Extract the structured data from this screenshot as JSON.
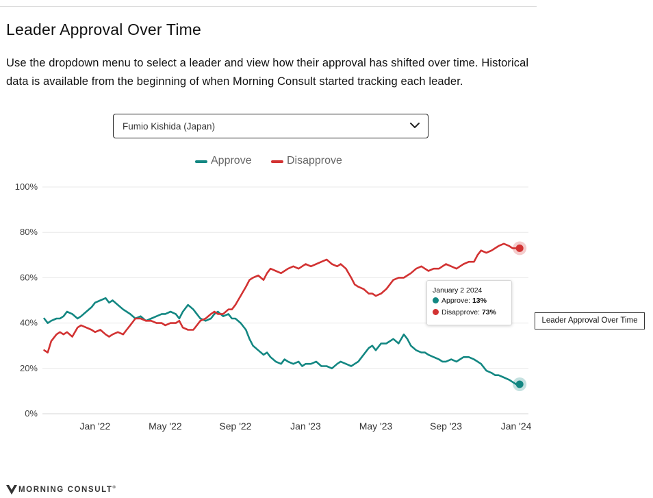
{
  "page": {
    "title": "Leader Approval Over Time",
    "description": "Use the dropdown menu to select a leader and view how their approval has shifted over time. Historical data is available from the beginning of when Morning Consult started tracking each leader.",
    "selected_leader": "Fumio Kishida (Japan)",
    "side_label": "Leader Approval Over Time",
    "brand": "MORNING CONSULT",
    "brand_mark": "®"
  },
  "colors": {
    "approve": "#138782",
    "disapprove": "#d23232"
  },
  "icons": {
    "dropdown": "chevron-down-icon",
    "brand": "morning-consult-logo-icon"
  },
  "tooltip": {
    "date": "January 2 2024",
    "approve_label": "Approve:",
    "approve_value": "13%",
    "disapprove_label": "Disapprove:",
    "disapprove_value": "73%"
  },
  "chart_data": {
    "type": "line",
    "title": "Leader Approval Over Time",
    "xlabel": "",
    "ylabel": "",
    "ylim": [
      0,
      100
    ],
    "yticks": [
      "0%",
      "20%",
      "40%",
      "60%",
      "80%",
      "100%"
    ],
    "ytick_values": [
      0,
      20,
      40,
      60,
      80,
      100
    ],
    "xticks": [
      "Jan '22",
      "May '22",
      "Sep '22",
      "Jan '23",
      "May '23",
      "Sep '23",
      "Jan '24"
    ],
    "xtick_values": [
      3,
      7,
      11,
      15,
      19,
      23,
      27
    ],
    "x_unit": "month index (0 = October 2021)",
    "legend": [
      "Approve",
      "Disapprove"
    ],
    "legend_position": "top-center",
    "grid": true,
    "series": [
      {
        "name": "Approve",
        "x": [
          0.1,
          0.3,
          0.5,
          0.8,
          1.0,
          1.2,
          1.4,
          1.7,
          2.0,
          2.2,
          2.5,
          2.8,
          3.0,
          3.3,
          3.6,
          3.8,
          4.0,
          4.3,
          4.6,
          4.8,
          5.0,
          5.3,
          5.6,
          5.9,
          6.2,
          6.5,
          6.8,
          7.0,
          7.3,
          7.6,
          7.8,
          8.0,
          8.3,
          8.6,
          8.8,
          9.0,
          9.3,
          9.6,
          9.8,
          10.0,
          10.3,
          10.6,
          10.8,
          11.0,
          11.3,
          11.6,
          11.8,
          12.0,
          12.3,
          12.6,
          12.8,
          13.0,
          13.3,
          13.6,
          13.8,
          14.0,
          14.3,
          14.6,
          14.8,
          15.0,
          15.3,
          15.6,
          15.9,
          16.2,
          16.5,
          16.8,
          17.0,
          17.3,
          17.6,
          17.8,
          18.0,
          18.3,
          18.6,
          18.8,
          19.0,
          19.3,
          19.6,
          19.8,
          20.0,
          20.3,
          20.6,
          20.8,
          21.0,
          21.3,
          21.6,
          21.8,
          22.0,
          22.3,
          22.6,
          22.8,
          23.0,
          23.3,
          23.6,
          23.8,
          24.0,
          24.3,
          24.6,
          24.8,
          25.0,
          25.3,
          25.6,
          25.8,
          26.0,
          26.3,
          26.6,
          26.8,
          27.0,
          27.2
        ],
        "values": [
          42,
          40,
          41,
          42,
          42,
          43,
          45,
          44,
          42,
          43,
          45,
          47,
          49,
          50,
          51,
          49,
          50,
          48,
          46,
          45,
          44,
          42,
          43,
          41,
          42,
          43,
          44,
          44,
          45,
          44,
          42,
          45,
          48,
          46,
          44,
          42,
          41,
          42,
          44,
          45,
          43,
          44,
          42,
          42,
          40,
          37,
          33,
          30,
          28,
          26,
          27,
          25,
          23,
          22,
          24,
          23,
          22,
          23,
          21,
          22,
          22,
          23,
          21,
          21,
          20,
          22,
          23,
          22,
          21,
          22,
          23,
          26,
          29,
          30,
          28,
          31,
          31,
          32,
          33,
          31,
          35,
          33,
          30,
          28,
          27,
          27,
          26,
          25,
          24,
          23,
          23,
          24,
          23,
          24,
          25,
          25,
          24,
          23,
          22,
          19,
          18,
          17,
          17,
          16,
          15,
          14,
          13,
          13
        ]
      },
      {
        "name": "Disapprove",
        "x": [
          0.1,
          0.3,
          0.5,
          0.8,
          1.0,
          1.2,
          1.4,
          1.7,
          2.0,
          2.2,
          2.5,
          2.8,
          3.0,
          3.3,
          3.6,
          3.8,
          4.0,
          4.3,
          4.6,
          4.8,
          5.0,
          5.3,
          5.6,
          5.9,
          6.2,
          6.5,
          6.8,
          7.0,
          7.3,
          7.6,
          7.8,
          8.0,
          8.3,
          8.6,
          8.8,
          9.0,
          9.3,
          9.6,
          9.8,
          10.0,
          10.3,
          10.6,
          10.8,
          11.0,
          11.3,
          11.6,
          11.8,
          12.0,
          12.3,
          12.6,
          12.8,
          13.0,
          13.3,
          13.6,
          13.8,
          14.0,
          14.3,
          14.6,
          14.8,
          15.0,
          15.3,
          15.6,
          15.9,
          16.2,
          16.5,
          16.8,
          17.0,
          17.3,
          17.6,
          17.8,
          18.0,
          18.3,
          18.6,
          18.8,
          19.0,
          19.3,
          19.6,
          19.8,
          20.0,
          20.3,
          20.6,
          20.8,
          21.0,
          21.3,
          21.6,
          21.8,
          22.0,
          22.3,
          22.6,
          22.8,
          23.0,
          23.3,
          23.6,
          23.8,
          24.0,
          24.3,
          24.6,
          24.8,
          25.0,
          25.3,
          25.6,
          25.8,
          26.0,
          26.3,
          26.6,
          26.8,
          27.0,
          27.2
        ],
        "values": [
          28,
          27,
          32,
          35,
          36,
          35,
          36,
          34,
          38,
          39,
          38,
          37,
          36,
          37,
          35,
          34,
          35,
          36,
          35,
          37,
          39,
          42,
          42,
          41,
          41,
          40,
          40,
          39,
          40,
          40,
          41,
          38,
          37,
          37,
          39,
          41,
          42,
          44,
          45,
          44,
          44,
          46,
          46,
          48,
          52,
          56,
          59,
          60,
          61,
          59,
          62,
          64,
          63,
          62,
          63,
          64,
          65,
          64,
          65,
          66,
          65,
          66,
          67,
          68,
          66,
          65,
          66,
          64,
          60,
          57,
          56,
          55,
          53,
          53,
          52,
          53,
          55,
          57,
          59,
          60,
          60,
          61,
          62,
          64,
          65,
          64,
          63,
          64,
          64,
          65,
          66,
          65,
          64,
          65,
          66,
          67,
          67,
          70,
          72,
          71,
          72,
          73,
          74,
          75,
          74,
          73,
          73,
          73
        ]
      }
    ],
    "markers": [
      {
        "series": "Approve",
        "x": 27.2,
        "value": 13
      },
      {
        "series": "Disapprove",
        "x": 27.2,
        "value": 73
      }
    ]
  }
}
